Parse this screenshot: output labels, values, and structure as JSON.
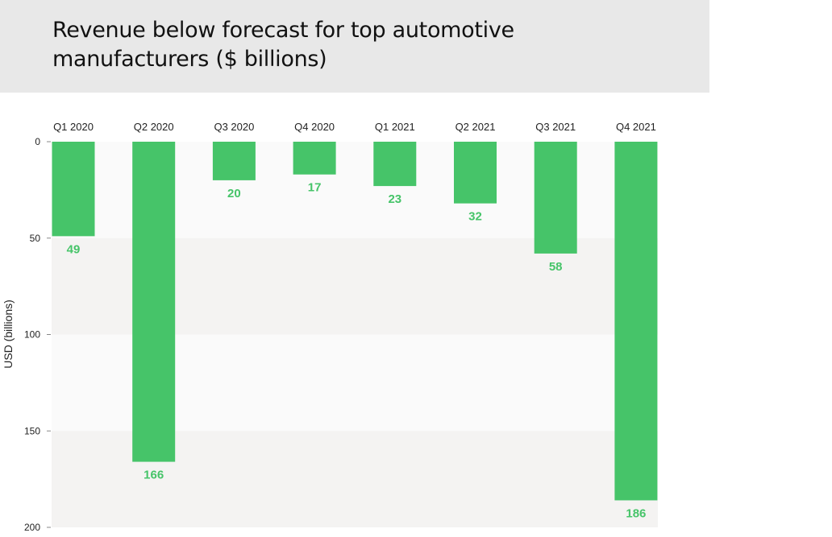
{
  "chart_data": {
    "type": "bar",
    "orientation": "inverted",
    "title": "Revenue below forecast for top automotive manufacturers ($ billions)",
    "xlabel": "",
    "ylabel": "USD (billions)",
    "categories": [
      "Q1 2020",
      "Q2 2020",
      "Q3 2020",
      "Q4 2020",
      "Q1 2021",
      "Q2 2021",
      "Q3 2021",
      "Q4 2021"
    ],
    "values": [
      49,
      166,
      20,
      17,
      23,
      32,
      58,
      186
    ],
    "ylim": [
      0,
      200
    ],
    "yticks": [
      0,
      50,
      100,
      150,
      200
    ],
    "grid": "alternating bands",
    "bar_color": "#46c469",
    "label_color": "#46c469",
    "band_colors": [
      "#fafafa",
      "#f4f3f2"
    ]
  }
}
